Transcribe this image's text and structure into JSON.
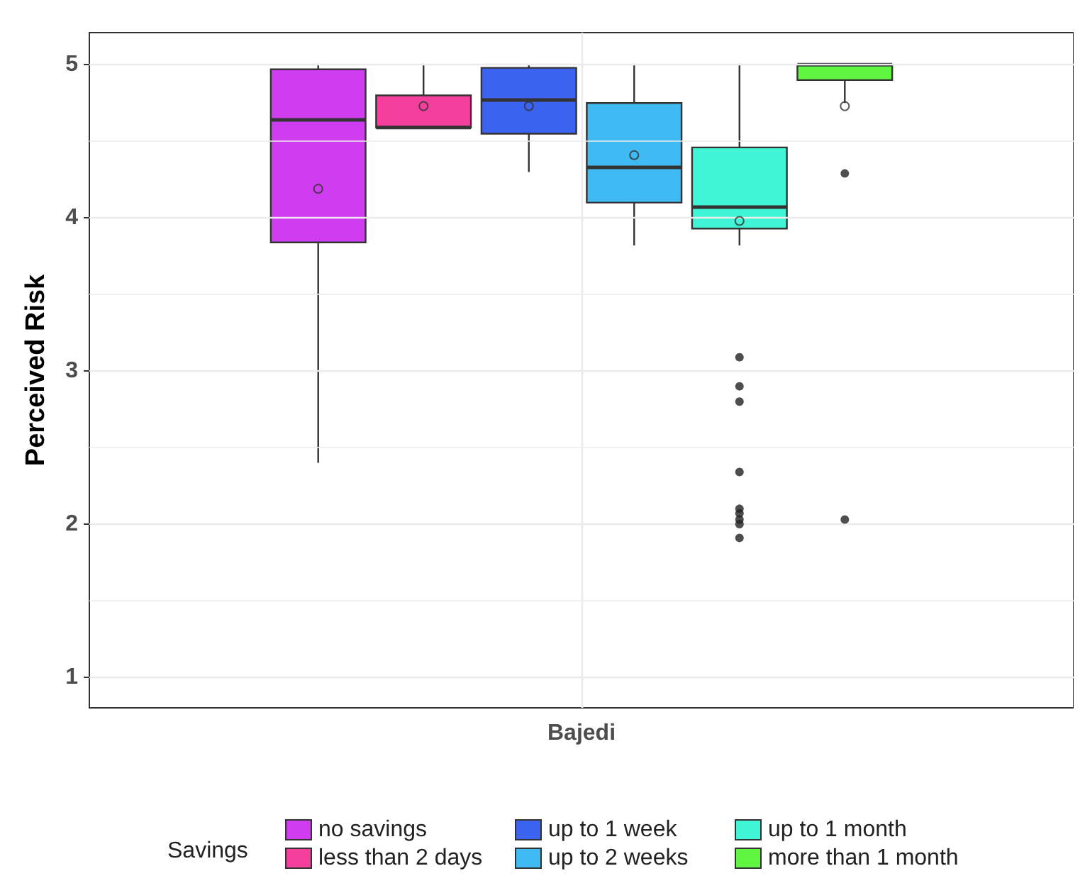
{
  "chart_data": {
    "type": "box",
    "ylabel": "Perceived Risk",
    "xlabel": null,
    "categories": [
      "Bajedi"
    ],
    "legend_title": "Savings",
    "legend": "bottom",
    "grid": true,
    "ylim": [
      0.8,
      5.21
    ],
    "yticks": [
      1,
      {
        "value": 1.5,
        "label": null
      },
      2,
      {
        "value": 2.5,
        "label": null
      },
      3,
      {
        "value": 3.5,
        "label": null
      },
      4,
      {
        "value": 4.5,
        "label": null
      },
      5
    ],
    "series": [
      {
        "name": "no savings",
        "color": "#d03cf0",
        "boxes": [
          {
            "low": 2.4,
            "q1": 3.84,
            "median": 4.64,
            "q3": 4.97,
            "high": 5,
            "mean": 4.19
          }
        ]
      },
      {
        "name": "less than 2 days",
        "color": "#f43f9c",
        "boxes": [
          {
            "low": 4.59,
            "q1": 4.59,
            "median": 4.59,
            "q3": 4.8,
            "high": 5,
            "mean": 4.73
          }
        ]
      },
      {
        "name": "up to 1 week",
        "color": "#3c62f0",
        "boxes": [
          {
            "low": 4.3,
            "q1": 4.55,
            "median": 4.77,
            "q3": 4.98,
            "high": 5,
            "mean": 4.73
          }
        ]
      },
      {
        "name": "up to 2 weeks",
        "color": "#3fbaf2",
        "boxes": [
          {
            "low": 3.82,
            "q1": 4.1,
            "median": 4.33,
            "q3": 4.75,
            "high": 5,
            "mean": 4.41
          }
        ]
      },
      {
        "name": "up to 1 month",
        "color": "#40f5d6",
        "boxes": [
          {
            "low": 3.82,
            "q1": 3.93,
            "median": 4.07,
            "q3": 4.46,
            "high": 5,
            "mean": 3.98,
            "outliers": [
              3.09,
              2.9,
              2.8,
              2.34,
              2.1,
              2.07,
              2.03,
              2.0,
              1.91
            ]
          }
        ]
      },
      {
        "name": "more than 1 month",
        "color": "#5ff540",
        "boxes": [
          {
            "low": 4.75,
            "q1": 4.9,
            "median": 5,
            "q3": 5,
            "high": 5,
            "mean": 4.73,
            "outliers": [
              4.29,
              2.03
            ]
          }
        ]
      }
    ]
  }
}
